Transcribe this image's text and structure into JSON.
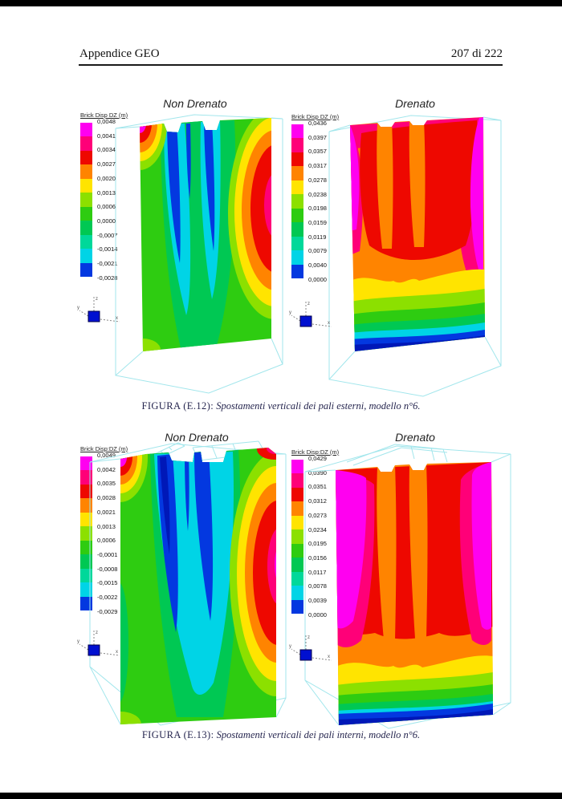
{
  "header": {
    "left": "Appendice GEO",
    "right": "207 di 222"
  },
  "palette": [
    "#ff00f0",
    "#ff0078",
    "#ee0800",
    "#ff8400",
    "#ffe400",
    "#8ce000",
    "#2ecc11",
    "#00c853",
    "#00d89a",
    "#00d4e6",
    "#0338e0"
  ],
  "triad": {
    "z": "z",
    "y": "y",
    "x": "x"
  },
  "figures": [
    {
      "caption_label": "FIGURA (E.12):",
      "caption_text": " Spostamenti verticali dei pali esterni, modello n°6.",
      "panels": [
        {
          "title": "Non Drenato",
          "legend_title": "Brick Disp DZ  (m)",
          "values": [
            "0,0048",
            "0,0041",
            "0,0034",
            "0,0027",
            "0,0020",
            "0,0013",
            "0,0006",
            "0,0000",
            "-0,0007",
            "-0,0014",
            "-0,0021",
            "-0,0028"
          ]
        },
        {
          "title": "Drenato",
          "legend_title": "Brick Disp DZ  (m)",
          "values": [
            "0,0436",
            "0,0397",
            "0,0357",
            "0,0317",
            "0,0278",
            "0,0238",
            "0,0198",
            "0,0159",
            "0,0119",
            "0,0079",
            "0,0040",
            "0,0000"
          ]
        }
      ]
    },
    {
      "caption_label": "FIGURA (E.13):",
      "caption_text": " Spostamenti verticali dei pali interni, modello n°6.",
      "panels": [
        {
          "title": "Non Drenato",
          "legend_title": "Brick Disp:DZ  (m)",
          "values": [
            "0,0049",
            "0,0042",
            "0,0035",
            "0,0028",
            "0,0021",
            "0,0013",
            "0,0006",
            "-0,0001",
            "-0,0008",
            "-0,0015",
            "-0,0022",
            "-0,0029"
          ]
        },
        {
          "title": "Drenato",
          "legend_title": "Brick Disp:DZ  (m)",
          "values": [
            "0,0429",
            "0,0390",
            "0,0351",
            "0,0312",
            "0,0273",
            "0,0234",
            "0,0195",
            "0,0156",
            "0,0117",
            "0,0078",
            "0,0039",
            "0,0000"
          ]
        }
      ]
    }
  ]
}
